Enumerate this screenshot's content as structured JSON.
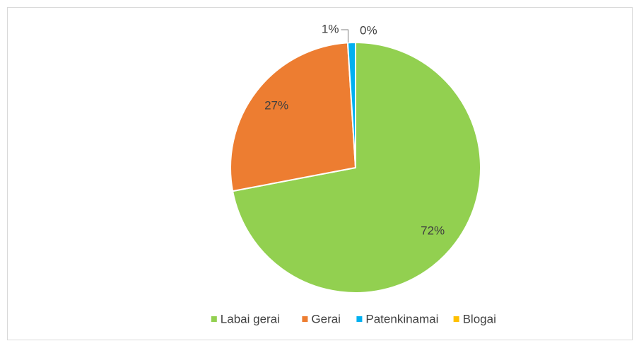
{
  "chart_data": {
    "type": "pie",
    "categories": [
      "Labai gerai",
      "Gerai",
      "Patenkinamai",
      "Blogai"
    ],
    "values": [
      72,
      27,
      1,
      0
    ],
    "value_labels": [
      "72%",
      "27%",
      "1%",
      "0%"
    ],
    "colors": [
      "#92d050",
      "#ed7d31",
      "#00b0f0",
      "#ffc000"
    ],
    "legend": "bottom"
  }
}
